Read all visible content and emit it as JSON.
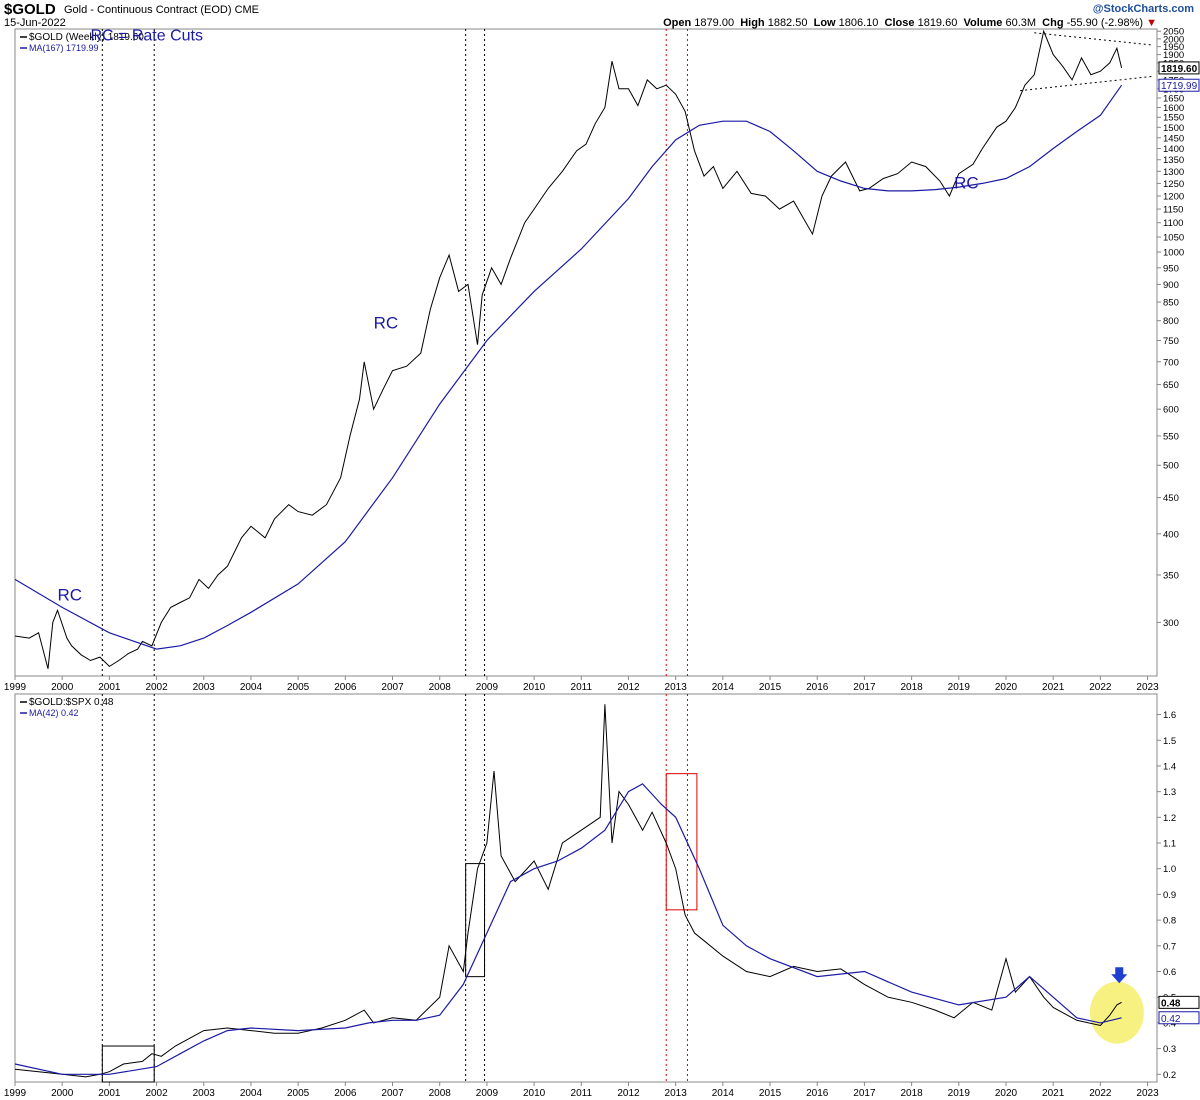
{
  "header": {
    "symbol": "$GOLD",
    "title": "Gold - Continuous Contract (EOD)",
    "exchange": "CME",
    "date": "15-Jun-2022",
    "brand": "@StockCharts.com",
    "open_label": "Open",
    "open_value": "1879.00",
    "high_label": "High",
    "high_value": "1882.50",
    "low_label": "Low",
    "low_value": "1806.10",
    "close_label": "Close",
    "close_value": "1819.60",
    "volume_label": "Volume",
    "volume_value": "60.3M",
    "chg_label": "Chg",
    "chg_value": "-55.90 (-2.98%)",
    "chg_marker": "▼"
  },
  "colors": {
    "price": "#000000",
    "ma": "#1a1aa6",
    "annotation": "#1a1aa6",
    "black_vlines": "#000000",
    "red_vlines": "#e00000",
    "highlight": "#f5f07a",
    "arrow": "#1f3fd0"
  },
  "chart_data": [
    {
      "type": "line",
      "title": "$GOLD (Weekly) 1819.60",
      "ma_label": "MA(167) 1719.99",
      "ylog": true,
      "ylim": [
        252,
        2065
      ],
      "xlim": [
        1999.0,
        2023.2
      ],
      "yticks": [
        300,
        350,
        400,
        450,
        500,
        550,
        600,
        650,
        700,
        750,
        800,
        850,
        900,
        950,
        1000,
        1050,
        1100,
        1150,
        1200,
        1250,
        1300,
        1350,
        1400,
        1450,
        1500,
        1550,
        1600,
        1650,
        1700,
        1750,
        1800,
        1850,
        1900,
        1950,
        2000,
        2050
      ],
      "xticks": [
        "1999",
        "2000",
        "2001",
        "2002",
        "2003",
        "2004",
        "2005",
        "2006",
        "2007",
        "2008",
        "2009",
        "2010",
        "2011",
        "2012",
        "2013",
        "2014",
        "2015",
        "2016",
        "2017",
        "2018",
        "2019",
        "2020",
        "2021",
        "2022",
        "2023"
      ],
      "last_price_tag": "1819.60",
      "ma_tag": "1719.99",
      "annotations": [
        {
          "text": "RC = Rate Cuts",
          "x": 2000.6,
          "y": 1990
        },
        {
          "text": "RC",
          "x": 1999.9,
          "y": 322
        },
        {
          "text": "RC",
          "x": 2006.6,
          "y": 780
        },
        {
          "text": "RC",
          "x": 2018.9,
          "y": 1230
        }
      ],
      "series": [
        {
          "name": "$GOLD",
          "x": [
            1999.0,
            1999.3,
            1999.5,
            1999.7,
            1999.8,
            1999.9,
            2000.1,
            2000.2,
            2000.4,
            2000.6,
            2000.8,
            2001.0,
            2001.2,
            2001.4,
            2001.6,
            2001.7,
            2001.9,
            2002.1,
            2002.3,
            2002.5,
            2002.7,
            2002.9,
            2003.1,
            2003.3,
            2003.5,
            2003.8,
            2004.0,
            2004.3,
            2004.5,
            2004.8,
            2005.0,
            2005.3,
            2005.6,
            2005.9,
            2006.1,
            2006.3,
            2006.4,
            2006.6,
            2006.8,
            2007.0,
            2007.3,
            2007.6,
            2007.8,
            2008.0,
            2008.2,
            2008.4,
            2008.6,
            2008.8,
            2008.9,
            2009.1,
            2009.3,
            2009.5,
            2009.8,
            2010.0,
            2010.3,
            2010.6,
            2010.9,
            2011.1,
            2011.3,
            2011.5,
            2011.65,
            2011.8,
            2012.0,
            2012.2,
            2012.4,
            2012.6,
            2012.8,
            2013.0,
            2013.2,
            2013.4,
            2013.6,
            2013.8,
            2014.0,
            2014.3,
            2014.6,
            2014.9,
            2015.2,
            2015.5,
            2015.9,
            2016.1,
            2016.3,
            2016.6,
            2016.9,
            2017.1,
            2017.4,
            2017.7,
            2018.0,
            2018.3,
            2018.6,
            2018.8,
            2019.0,
            2019.3,
            2019.5,
            2019.8,
            2020.0,
            2020.2,
            2020.4,
            2020.6,
            2020.8,
            2021.0,
            2021.2,
            2021.4,
            2021.6,
            2021.8,
            2022.0,
            2022.2,
            2022.35,
            2022.45
          ],
          "values": [
            287,
            285,
            290,
            258,
            300,
            312,
            285,
            278,
            270,
            265,
            268,
            260,
            265,
            271,
            275,
            282,
            278,
            300,
            315,
            320,
            325,
            345,
            335,
            350,
            360,
            395,
            410,
            395,
            420,
            440,
            430,
            425,
            440,
            480,
            550,
            620,
            700,
            600,
            640,
            680,
            690,
            720,
            830,
            920,
            990,
            880,
            900,
            740,
            870,
            950,
            900,
            980,
            1100,
            1150,
            1230,
            1300,
            1390,
            1420,
            1520,
            1600,
            1860,
            1700,
            1700,
            1610,
            1750,
            1700,
            1720,
            1670,
            1580,
            1390,
            1280,
            1320,
            1230,
            1300,
            1210,
            1200,
            1150,
            1180,
            1060,
            1200,
            1280,
            1340,
            1220,
            1230,
            1270,
            1290,
            1340,
            1320,
            1260,
            1200,
            1290,
            1330,
            1400,
            1500,
            1530,
            1600,
            1720,
            1780,
            2050,
            1900,
            1830,
            1750,
            1880,
            1780,
            1800,
            1850,
            1940,
            1819.6
          ]
        },
        {
          "name": "MA(167)",
          "x": [
            1999.0,
            2000.0,
            2001.0,
            2002.0,
            2002.5,
            2003.0,
            2003.5,
            2004.0,
            2005.0,
            2006.0,
            2007.0,
            2008.0,
            2009.0,
            2010.0,
            2011.0,
            2012.0,
            2012.5,
            2013.0,
            2013.5,
            2014.0,
            2014.5,
            2015.0,
            2015.5,
            2016.0,
            2016.5,
            2017.0,
            2017.5,
            2018.0,
            2018.5,
            2019.0,
            2019.5,
            2020.0,
            2020.5,
            2021.0,
            2021.5,
            2022.0,
            2022.45
          ],
          "values": [
            345,
            315,
            290,
            275,
            278,
            285,
            297,
            310,
            340,
            390,
            480,
            610,
            750,
            880,
            1010,
            1190,
            1320,
            1440,
            1510,
            1530,
            1530,
            1480,
            1390,
            1300,
            1260,
            1230,
            1220,
            1220,
            1225,
            1235,
            1250,
            1270,
            1320,
            1400,
            1480,
            1560,
            1719.99
          ]
        }
      ]
    },
    {
      "type": "line",
      "title": "$GOLD:$SPX 0.48",
      "ma_label": "MA(42) 0.42",
      "ylim": [
        0.17,
        1.68
      ],
      "xlim": [
        1999.0,
        2023.2
      ],
      "yticks": [
        0.2,
        0.3,
        0.4,
        0.5,
        0.6,
        0.7,
        0.8,
        0.9,
        1.0,
        1.1,
        1.2,
        1.3,
        1.4,
        1.5,
        1.6
      ],
      "ytick_labels": [
        "0.2",
        "0.3",
        "0.4",
        "0.5",
        "0.6",
        "0.7",
        "0.8",
        "0.9",
        "1.0",
        "1.1",
        "1.2",
        "1.3",
        "1.4",
        "1.5",
        "1.6"
      ],
      "xticks": [
        "1999",
        "2000",
        "2001",
        "2002",
        "2003",
        "2004",
        "2005",
        "2006",
        "2007",
        "2008",
        "2009",
        "2010",
        "2011",
        "2012",
        "2013",
        "2014",
        "2015",
        "2016",
        "2017",
        "2018",
        "2019",
        "2020",
        "2021",
        "2022",
        "2023"
      ],
      "last_price_tag": "0.48",
      "ma_tag": "0.42",
      "boxes": [
        {
          "x0": 2000.85,
          "x1": 2001.95,
          "y0": 0.17,
          "y1": 0.31,
          "color": "#000000"
        },
        {
          "x0": 2008.55,
          "x1": 2008.95,
          "y0": 0.58,
          "y1": 1.02,
          "color": "#000000"
        },
        {
          "x0": 2012.8,
          "x1": 2013.45,
          "y0": 0.84,
          "y1": 1.37,
          "color": "#e00000"
        }
      ],
      "series": [
        {
          "name": "$GOLD:$SPX",
          "x": [
            1999.0,
            1999.5,
            2000.0,
            2000.5,
            2000.8,
            2001.0,
            2001.3,
            2001.7,
            2001.9,
            2002.1,
            2002.4,
            2002.7,
            2003.0,
            2003.5,
            2004.0,
            2004.5,
            2005.0,
            2005.5,
            2006.0,
            2006.4,
            2006.6,
            2007.0,
            2007.5,
            2008.0,
            2008.2,
            2008.5,
            2008.6,
            2008.8,
            2009.0,
            2009.15,
            2009.3,
            2009.6,
            2010.0,
            2010.3,
            2010.6,
            2011.0,
            2011.4,
            2011.5,
            2011.65,
            2011.8,
            2012.0,
            2012.3,
            2012.5,
            2012.8,
            2013.0,
            2013.2,
            2013.4,
            2013.6,
            2014.0,
            2014.5,
            2015.0,
            2015.5,
            2016.0,
            2016.5,
            2017.0,
            2017.5,
            2018.0,
            2018.5,
            2018.9,
            2019.3,
            2019.7,
            2020.0,
            2020.2,
            2020.5,
            2020.8,
            2021.0,
            2021.5,
            2022.0,
            2022.2,
            2022.35,
            2022.45
          ],
          "values": [
            0.22,
            0.21,
            0.2,
            0.19,
            0.2,
            0.21,
            0.24,
            0.25,
            0.28,
            0.27,
            0.31,
            0.34,
            0.37,
            0.38,
            0.37,
            0.36,
            0.36,
            0.38,
            0.41,
            0.45,
            0.4,
            0.42,
            0.41,
            0.5,
            0.7,
            0.6,
            0.75,
            1.0,
            1.1,
            1.38,
            1.05,
            0.95,
            1.03,
            0.92,
            1.1,
            1.15,
            1.2,
            1.64,
            1.1,
            1.3,
            1.25,
            1.15,
            1.22,
            1.1,
            1.0,
            0.82,
            0.75,
            0.72,
            0.66,
            0.6,
            0.58,
            0.62,
            0.6,
            0.61,
            0.55,
            0.5,
            0.48,
            0.45,
            0.42,
            0.48,
            0.45,
            0.65,
            0.52,
            0.58,
            0.5,
            0.46,
            0.41,
            0.39,
            0.43,
            0.47,
            0.48
          ]
        },
        {
          "name": "MA(42)",
          "x": [
            1999.0,
            2000.0,
            2001.0,
            2002.0,
            2002.5,
            2003.0,
            2003.5,
            2004.0,
            2005.0,
            2006.0,
            2006.5,
            2007.0,
            2007.5,
            2008.0,
            2008.5,
            2009.0,
            2009.5,
            2010.0,
            2010.5,
            2011.0,
            2011.5,
            2012.0,
            2012.3,
            2012.7,
            2013.0,
            2013.5,
            2014.0,
            2014.5,
            2015.0,
            2016.0,
            2017.0,
            2018.0,
            2019.0,
            2020.0,
            2020.5,
            2021.0,
            2021.5,
            2022.0,
            2022.45
          ],
          "values": [
            0.24,
            0.2,
            0.2,
            0.23,
            0.28,
            0.33,
            0.37,
            0.38,
            0.37,
            0.38,
            0.4,
            0.41,
            0.41,
            0.43,
            0.55,
            0.75,
            0.95,
            1.0,
            1.03,
            1.08,
            1.15,
            1.3,
            1.33,
            1.25,
            1.2,
            1.0,
            0.78,
            0.7,
            0.65,
            0.58,
            0.6,
            0.52,
            0.47,
            0.5,
            0.58,
            0.5,
            0.42,
            0.4,
            0.42
          ]
        }
      ]
    }
  ]
}
